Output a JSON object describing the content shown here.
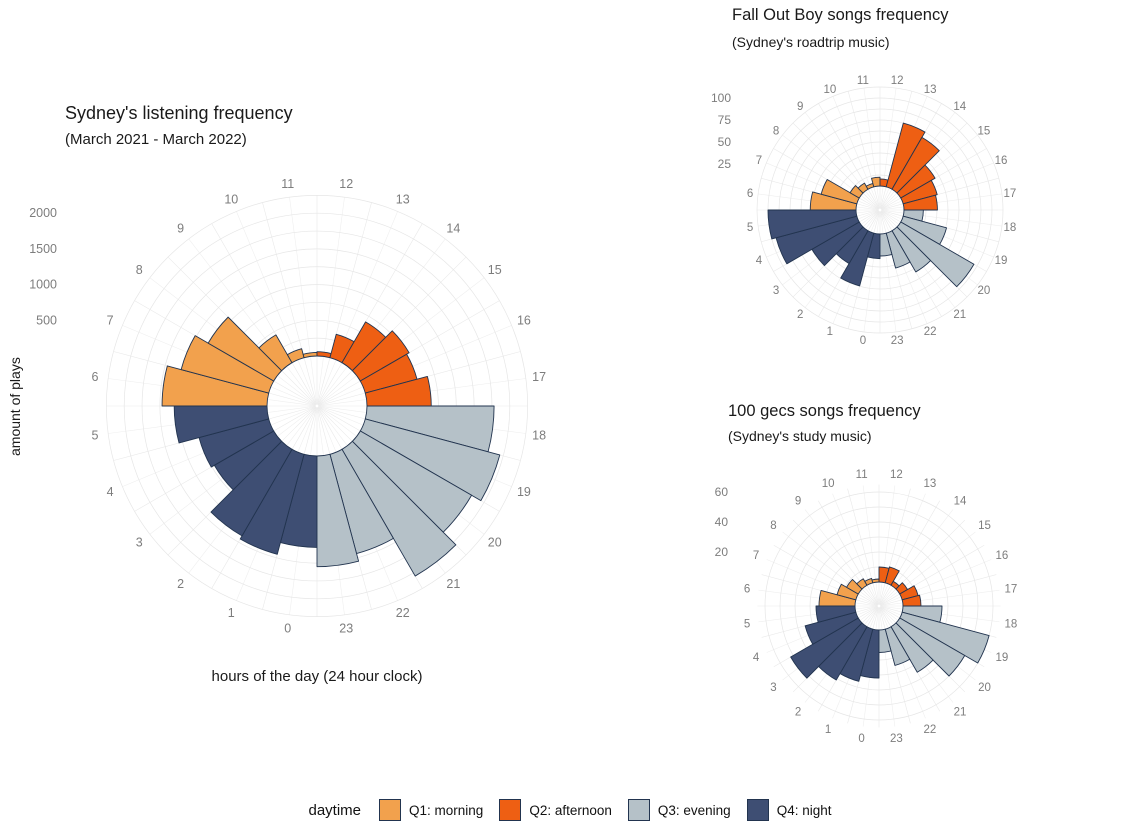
{
  "legend": {
    "title": "daytime",
    "items": [
      {
        "label": "Q1: morning",
        "color": "#F2A14D"
      },
      {
        "label": "Q2: afternoon",
        "color": "#EE5F13"
      },
      {
        "label": "Q3: evening",
        "color": "#B5C1C8"
      },
      {
        "label": "Q4: night",
        "color": "#3E4E73"
      }
    ]
  },
  "style": {
    "bar_stroke": "#22344F",
    "grid_circle": "#e6e6e6",
    "grid_spoke": "#efefef",
    "tick_text": "#7d7d7d"
  },
  "chart_data": [
    {
      "id": "listening",
      "type": "bar",
      "polar": true,
      "grid": true,
      "title": "Sydney's listening frequency",
      "subtitle": "(March 2021 - March 2022)",
      "xlabel": "hours of the day (24 hour clock)",
      "ylabel": "amount of plays",
      "hours": [
        0,
        1,
        2,
        3,
        4,
        5,
        6,
        7,
        8,
        9,
        10,
        11,
        12,
        13,
        14,
        15,
        16,
        17,
        18,
        19,
        20,
        21,
        22,
        23
      ],
      "values": [
        1280,
        1450,
        1400,
        960,
        1010,
        1300,
        1470,
        1270,
        1060,
        450,
        130,
        50,
        60,
        340,
        660,
        790,
        750,
        900,
        1780,
        1950,
        1800,
        2050,
        1440,
        1550
      ],
      "r_ticks": [
        500,
        1000,
        1500,
        2000
      ],
      "rlim": [
        0,
        2250
      ]
    },
    {
      "id": "fall-out-boy",
      "type": "bar",
      "polar": true,
      "grid": true,
      "title": "Fall Out Boy songs frequency",
      "subtitle": "(Sydney's roadtrip music)",
      "xlabel": "",
      "ylabel": "",
      "hours": [
        0,
        1,
        2,
        3,
        4,
        5,
        6,
        7,
        8,
        9,
        10,
        11,
        12,
        13,
        14,
        15,
        16,
        17,
        18,
        19,
        20,
        21,
        22,
        23
      ],
      "values": [
        28,
        62,
        43,
        62,
        95,
        100,
        52,
        42,
        12,
        8,
        4,
        10,
        8,
        75,
        68,
        45,
        40,
        38,
        22,
        51,
        96,
        54,
        41,
        25
      ],
      "r_ticks": [
        25,
        50,
        75,
        100
      ],
      "rlim": [
        0,
        112.5
      ]
    },
    {
      "id": "100-gecs",
      "type": "bar",
      "polar": true,
      "grid": true,
      "title": "100 gecs songs frequency",
      "subtitle": "(Sydney's study music)",
      "xlabel": "",
      "ylabel": "",
      "hours": [
        0,
        1,
        2,
        3,
        4,
        5,
        6,
        7,
        8,
        9,
        10,
        11,
        12,
        13,
        14,
        15,
        16,
        17,
        18,
        19,
        20,
        21,
        22,
        23
      ],
      "values": [
        32,
        36,
        41,
        52,
        35,
        26,
        24,
        13,
        9,
        5,
        3,
        2,
        10,
        11,
        3,
        6,
        11,
        12,
        26,
        60,
        50,
        35,
        25,
        15
      ],
      "r_ticks": [
        20,
        40,
        60
      ],
      "rlim": [
        0,
        65
      ]
    }
  ]
}
